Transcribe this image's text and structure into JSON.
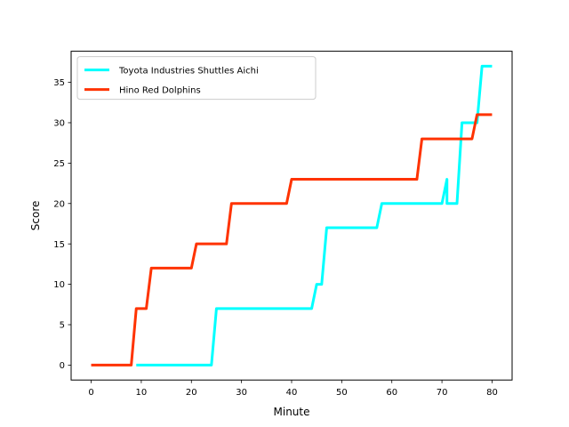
{
  "chart_data": {
    "type": "line",
    "title": "",
    "xlabel": "Minute",
    "ylabel": "Score",
    "xlim": [
      -4,
      84
    ],
    "ylim": [
      -1.85,
      38.85
    ],
    "xticks": [
      0,
      10,
      20,
      30,
      40,
      50,
      60,
      70,
      80
    ],
    "yticks": [
      0,
      5,
      10,
      15,
      20,
      25,
      30,
      35
    ],
    "grid": false,
    "legend_position": "top-left",
    "series": [
      {
        "name": "Toyota Industries Shuttles Aichi",
        "color": "#00ffff",
        "x": [
          9,
          24,
          25,
          44,
          45,
          46,
          47,
          57,
          58,
          70,
          71,
          71,
          72,
          73,
          74,
          75,
          76,
          77,
          78,
          80
        ],
        "y": [
          0,
          0,
          7,
          7,
          10,
          10,
          17,
          17,
          20,
          20,
          23,
          20,
          20,
          20,
          30,
          30,
          30,
          30,
          37,
          37
        ]
      },
      {
        "name": "Hino Red Dolphins",
        "color": "#ff3300",
        "x": [
          0,
          8,
          9,
          11,
          12,
          20,
          21,
          27,
          28,
          39,
          40,
          65,
          66,
          76,
          77,
          80
        ],
        "y": [
          0,
          0,
          7,
          7,
          12,
          12,
          15,
          15,
          20,
          20,
          23,
          23,
          28,
          28,
          31,
          31
        ]
      }
    ]
  }
}
